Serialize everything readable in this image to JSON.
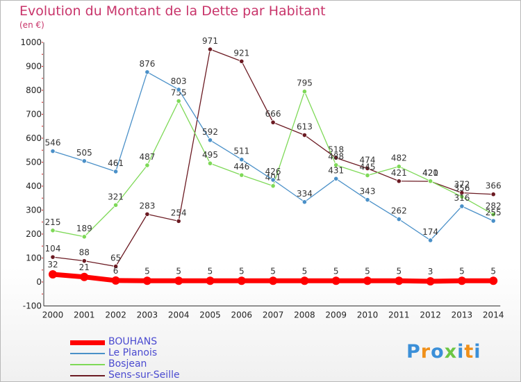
{
  "chart_data": {
    "type": "line",
    "title": "Evolution du Montant de la Dette par Habitant",
    "subtitle": "(en €)",
    "x": [
      "2000",
      "2001",
      "2002",
      "2003",
      "2004",
      "2005",
      "2006",
      "2007",
      "2008",
      "2009",
      "2010",
      "2011",
      "2012",
      "2013",
      "2014"
    ],
    "ylim": [
      -100,
      1000
    ],
    "yticks": [
      -100,
      0,
      100,
      200,
      300,
      400,
      500,
      600,
      700,
      800,
      900,
      1000
    ],
    "grid": false,
    "legend_position": "bottom-left",
    "series": [
      {
        "name": "Sens-sur-Seille",
        "color": "#6b1a22",
        "values": [
          104,
          88,
          65,
          283,
          254,
          971,
          921,
          666,
          613,
          518,
          474,
          421,
          420,
          372,
          366
        ]
      },
      {
        "name": "Bosjean",
        "color": "#7ed957",
        "values": [
          215,
          189,
          321,
          487,
          755,
          495,
          446,
          401,
          795,
          488,
          445,
          482,
          421,
          356,
          282
        ]
      },
      {
        "name": "Le Planois",
        "color": "#4a90c8",
        "values": [
          546,
          505,
          461,
          876,
          803,
          592,
          511,
          426,
          334,
          431,
          343,
          262,
          174,
          316,
          255
        ]
      },
      {
        "name": "BOUHANS",
        "color": "#ff0000",
        "values": [
          32,
          21,
          6,
          5,
          5,
          5,
          5,
          5,
          5,
          5,
          5,
          5,
          3,
          5,
          5
        ]
      }
    ],
    "legend_order": [
      "BOUHANS",
      "Le Planois",
      "Bosjean",
      "Sens-sur-Seille"
    ]
  },
  "brand": {
    "text": "Proxiti",
    "colors": [
      "#3b8fd8",
      "#f0901a",
      "#3b8fd8",
      "#6cc644",
      "#3b8fd8",
      "#f0901a",
      "#3b8fd8"
    ]
  }
}
